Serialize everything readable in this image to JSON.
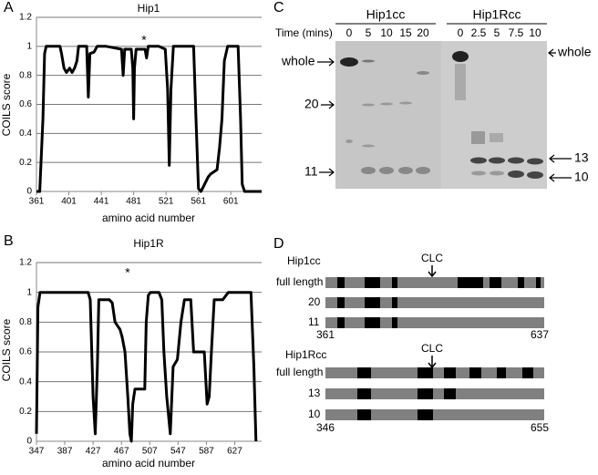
{
  "chart_data": [
    {
      "type": "line",
      "panel_label": "A",
      "title": "Hip1",
      "annotation": "*",
      "x_label": "amino acid number",
      "y_label": "COILS score",
      "x": [
        361,
        365,
        369,
        371,
        373,
        390,
        392,
        395,
        398,
        402,
        405,
        408,
        411,
        413,
        423,
        425,
        427,
        432,
        436,
        447,
        466,
        468,
        470,
        478,
        480,
        481,
        482,
        484,
        495,
        497,
        499,
        512,
        520,
        523,
        525,
        527,
        530,
        534,
        555,
        558,
        561,
        564,
        566,
        573,
        576,
        584,
        587,
        590,
        593,
        597,
        610,
        613,
        615,
        618,
        639
      ],
      "values": [
        0,
        0,
        0.5,
        0.95,
        1,
        1,
        0.95,
        0.85,
        0.82,
        0.85,
        0.82,
        0.85,
        0.9,
        1,
        1,
        0.65,
        0.95,
        0.96,
        1,
        1,
        0.98,
        0.8,
        0.98,
        0.98,
        0.85,
        0.5,
        0.85,
        0.98,
        0.98,
        0.92,
        1,
        1,
        0.98,
        0.7,
        0.18,
        0.7,
        1,
        1,
        1,
        0.5,
        0.02,
        0,
        0.02,
        0.1,
        0.12,
        0.15,
        0.3,
        0.5,
        0.9,
        1,
        1,
        0.5,
        0.05,
        0,
        0
      ],
      "color": "#000000",
      "xlim": [
        361,
        639
      ],
      "ylim": [
        0,
        1.2
      ],
      "xticks": [
        361,
        401,
        441,
        481,
        521,
        561,
        601
      ],
      "yticks": [
        0,
        0.2,
        0.4,
        0.6,
        0.8,
        1,
        1.2
      ],
      "grid": true
    },
    {
      "type": "line",
      "panel_label": "B",
      "title": "Hip1R",
      "annotation": "*",
      "x_label": "amino acid number",
      "y_label": "COILS score",
      "x": [
        347,
        349,
        352,
        420,
        423,
        427,
        430,
        433,
        435,
        450,
        454,
        458,
        465,
        468,
        472,
        476,
        479,
        481,
        483,
        486,
        490,
        500,
        502,
        505,
        508,
        520,
        524,
        527,
        531,
        536,
        540,
        546,
        551,
        556,
        565,
        569,
        575,
        584,
        588,
        591,
        594,
        598,
        601,
        610,
        618,
        624,
        650,
        654,
        657
      ],
      "values": [
        0.05,
        0.9,
        1,
        1,
        0.95,
        0.3,
        0.05,
        0.5,
        0.95,
        0.95,
        0.93,
        0.8,
        0.75,
        0.7,
        0.6,
        0.3,
        0.05,
        0,
        0.25,
        0.35,
        0.35,
        0.35,
        0.8,
        0.98,
        1,
        1,
        0.95,
        0.6,
        0.3,
        0.05,
        0.5,
        0.55,
        0.8,
        0.95,
        0.95,
        0.6,
        0.6,
        0.6,
        0.25,
        0.3,
        0.6,
        0.95,
        0.95,
        0.95,
        1,
        1,
        1,
        0.5,
        0
      ],
      "color": "#000000",
      "xlim": [
        347,
        665
      ],
      "ylim": [
        0,
        1.2
      ],
      "xticks": [
        347,
        387,
        427,
        467,
        507,
        547,
        587,
        627
      ],
      "yticks": [
        0,
        0.2,
        0.4,
        0.6,
        0.8,
        1,
        1.2
      ],
      "grid": true
    }
  ],
  "gel": {
    "panel_label": "C",
    "time_label": "Time (mins)",
    "groups": [
      {
        "name": "Hip1cc",
        "lanes": [
          "0",
          "5",
          "10",
          "15",
          "20"
        ]
      },
      {
        "name": "Hip1Rcc",
        "lanes": [
          "0",
          "2.5",
          "5",
          "7.5",
          "10"
        ]
      }
    ],
    "left_markers": [
      "whole",
      "20",
      "11"
    ],
    "right_markers": [
      "whole",
      "13",
      "10"
    ]
  },
  "diagram": {
    "panel_label": "D",
    "groups": [
      {
        "name": "Hip1cc",
        "site": "CLC",
        "rows": [
          "full length",
          "20",
          "11"
        ],
        "start": "361",
        "end": "637"
      },
      {
        "name": "Hip1Rcc",
        "site": "CLC",
        "rows": [
          "full length",
          "13",
          "10"
        ],
        "start": "346",
        "end": "655"
      }
    ]
  }
}
